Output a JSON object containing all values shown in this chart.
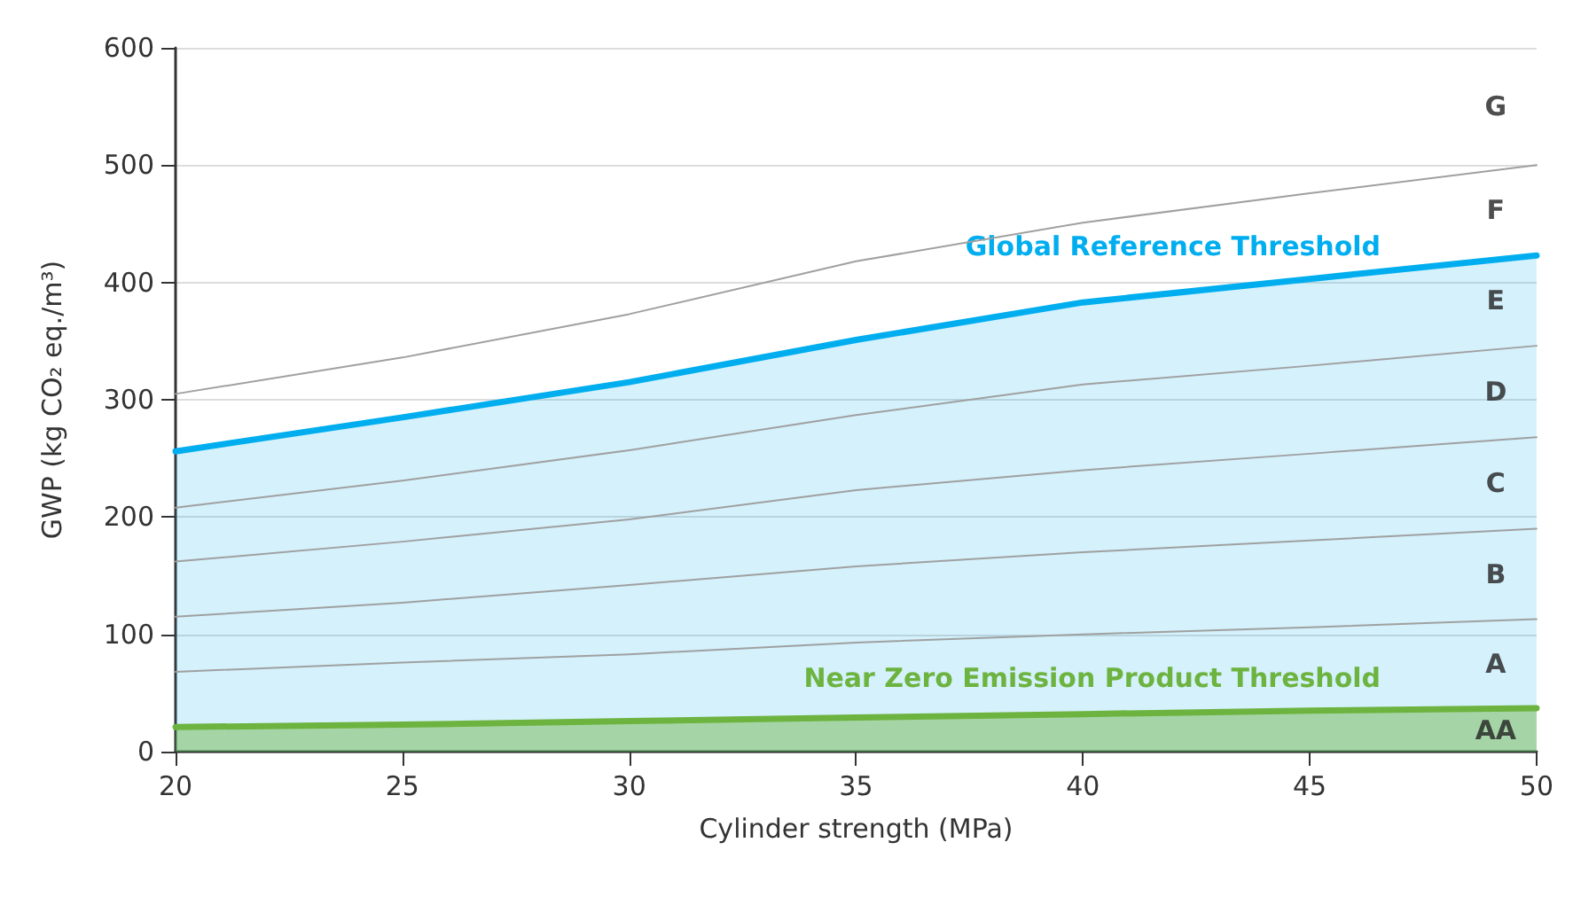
{
  "chart_data": {
    "type": "line",
    "xlabel": "Cylinder strength (MPa)",
    "ylabel": "GWP (kg CO₂ eq./m³)",
    "x": [
      20,
      25,
      30,
      35,
      40,
      45,
      50
    ],
    "series": [
      {
        "name": "Global Reference Threshold",
        "type": "area",
        "color": "#00aeef",
        "values": [
          256,
          285,
          315,
          351,
          383,
          403,
          423
        ]
      },
      {
        "name": "Near Zero Emission Product Threshold",
        "type": "area",
        "color": "#6db33f",
        "values": [
          21,
          23,
          26,
          29,
          32,
          35,
          37
        ]
      },
      {
        "color": "#a0a0a0",
        "values": [
          305,
          336,
          373,
          418,
          451,
          476,
          500
        ]
      },
      {
        "color": "#a0a0a0",
        "values": [
          208,
          231,
          257,
          287,
          313,
          329,
          346
        ]
      },
      {
        "color": "#a0a0a0",
        "values": [
          162,
          179,
          198,
          223,
          240,
          254,
          268
        ]
      },
      {
        "color": "#a0a0a0",
        "values": [
          115,
          127,
          142,
          158,
          170,
          180,
          190
        ]
      },
      {
        "color": "#a0a0a0",
        "values": [
          68,
          76,
          83,
          93,
          100,
          106,
          113
        ]
      }
    ],
    "annotations": [
      "G",
      "F",
      "E",
      "D",
      "C",
      "B",
      "A",
      "AA"
    ],
    "xlim": [
      20,
      50
    ],
    "xticks": [
      20,
      25,
      30,
      35,
      40,
      45,
      50
    ],
    "ylim": [
      0,
      600
    ],
    "yticks": [
      0,
      100,
      200,
      300,
      400,
      500,
      600
    ],
    "grid": "y",
    "legend": false,
    "marker": "none",
    "line_style": "solid"
  }
}
